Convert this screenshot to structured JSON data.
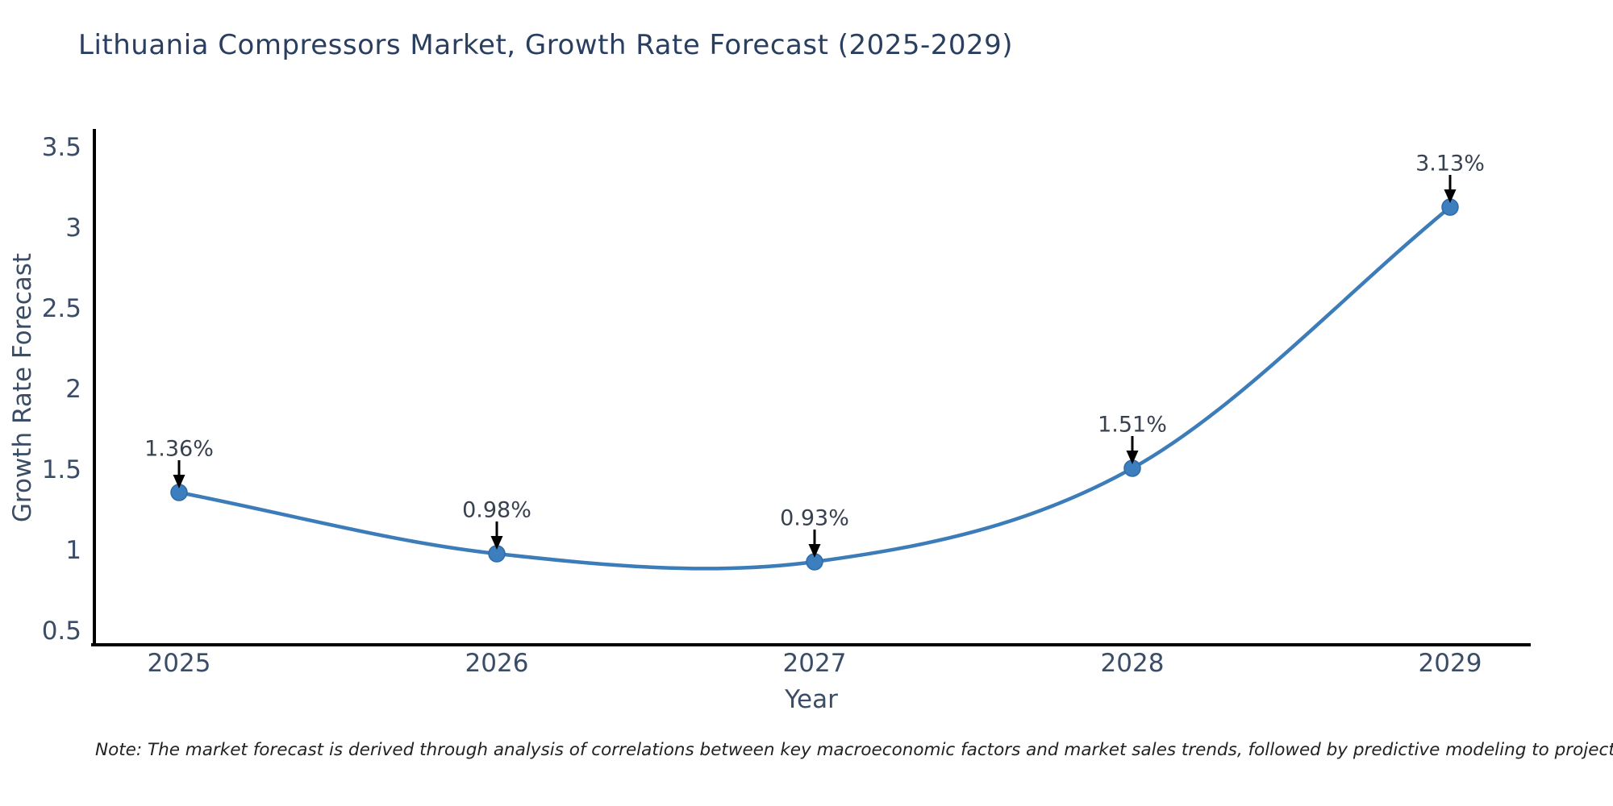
{
  "title": "Lithuania Compressors Market, Growth Rate Forecast (2025-2029)",
  "note": "Note: The market forecast is derived through analysis of correlations between key macroeconomic factors and market sales trends, followed by predictive modeling to project future sales",
  "chart_data": {
    "type": "line",
    "title": "Lithuania Compressors Market, Growth Rate Forecast (2025-2029)",
    "xlabel": "Year",
    "ylabel": "Growth Rate Forecast",
    "x": [
      2025,
      2026,
      2027,
      2028,
      2029
    ],
    "values": [
      1.36,
      0.98,
      0.93,
      1.51,
      3.13
    ],
    "point_labels": [
      "1.36%",
      "0.98%",
      "0.93%",
      "1.51%",
      "3.13%"
    ],
    "yticks": [
      0.5,
      1,
      1.5,
      2,
      2.5,
      3,
      3.5
    ],
    "ylim": [
      0.4,
      3.6
    ],
    "grid": false,
    "legend": "none",
    "line_shape": "spline",
    "markers": true
  },
  "colors": {
    "line": "#3c7cb8",
    "marker_fill": "#3d7fbe",
    "marker_edge": "#2f6ba8",
    "arrow": "#000000",
    "axis_line": "#000000",
    "title_text": "#2a3f5f",
    "tick_text": "#3b4d66",
    "annotation_text": "#38414f",
    "note_text": "#222222",
    "background": "#ffffff"
  }
}
